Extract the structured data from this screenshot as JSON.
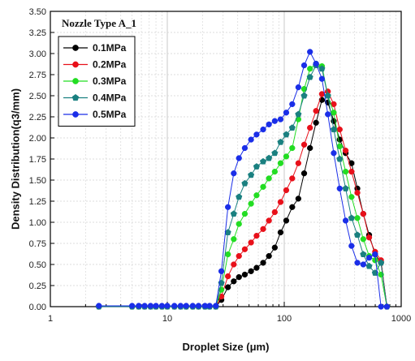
{
  "chart_data": {
    "type": "line",
    "title": "Nozzle Type A_1",
    "xlabel": "Droplet Size (μm)",
    "ylabel": "Density Distribution(q3/mm)",
    "xscale": "log",
    "xlim": [
      1,
      1000
    ],
    "ylim": [
      0,
      3.5
    ],
    "x_ticks": [
      1,
      10,
      100,
      1000
    ],
    "x_tick_labels": [
      "1",
      "10",
      "100",
      "1000"
    ],
    "y_ticks": [
      0,
      0.25,
      0.5,
      0.75,
      1.0,
      1.25,
      1.5,
      1.75,
      2.0,
      2.25,
      2.5,
      2.75,
      3.0,
      3.25,
      3.5
    ],
    "y_tick_labels": [
      "0.00",
      "0.25",
      "0.50",
      "0.75",
      "1.00",
      "1.25",
      "1.50",
      "1.75",
      "2.00",
      "2.25",
      "2.50",
      "2.75",
      "3.00",
      "3.25",
      "3.50"
    ],
    "grid": true,
    "legend_position": "top-left",
    "x": [
      2.6,
      5.0,
      5.7,
      6.4,
      7.2,
      8.0,
      9.0,
      10.0,
      11.5,
      13.0,
      14.5,
      16.5,
      18.5,
      21.0,
      23.0,
      26.0,
      29.0,
      33.0,
      37.0,
      41.0,
      46.0,
      52.0,
      58.0,
      66.0,
      74.0,
      83.0,
      93.0,
      104.0,
      117.0,
      132.0,
      148.0,
      166.0,
      187.0,
      210.0,
      236.0,
      265.0,
      298.0,
      335.0,
      376.0,
      422.0,
      474.0,
      532.0,
      598.0,
      672.0,
      755.0
    ],
    "series": [
      {
        "name": "0.1MPa",
        "color": "#000000",
        "marker": "circle",
        "values": [
          0,
          0,
          0,
          0,
          0,
          0,
          0,
          0,
          0,
          0,
          0,
          0,
          0,
          0,
          0,
          0,
          0.08,
          0.23,
          0.3,
          0.35,
          0.38,
          0.42,
          0.46,
          0.52,
          0.6,
          0.7,
          0.88,
          1.02,
          1.18,
          1.28,
          1.58,
          1.88,
          2.18,
          2.45,
          2.42,
          2.2,
          1.98,
          1.82,
          1.7,
          1.4,
          1.1,
          0.85,
          0.62,
          0.52,
          0
        ]
      },
      {
        "name": "0.2MPa",
        "color": "#e8101a",
        "marker": "circle",
        "values": [
          0,
          0,
          0,
          0,
          0,
          0,
          0,
          0,
          0,
          0,
          0,
          0,
          0,
          0,
          0,
          0,
          0.12,
          0.36,
          0.5,
          0.6,
          0.68,
          0.76,
          0.84,
          0.92,
          1.02,
          1.12,
          1.24,
          1.38,
          1.52,
          1.7,
          1.92,
          2.12,
          2.32,
          2.52,
          2.55,
          2.4,
          2.1,
          1.85,
          1.6,
          1.35,
          1.1,
          0.82,
          0.65,
          0.55,
          0
        ]
      },
      {
        "name": "0.3MPa",
        "color": "#22dd22",
        "marker": "circle",
        "values": [
          0,
          0,
          0,
          0,
          0,
          0,
          0,
          0,
          0,
          0,
          0,
          0,
          0,
          0,
          0,
          0,
          0.2,
          0.62,
          0.8,
          0.98,
          1.1,
          1.22,
          1.32,
          1.42,
          1.52,
          1.6,
          1.7,
          1.78,
          1.88,
          2.22,
          2.58,
          2.82,
          2.88,
          2.85,
          2.5,
          2.3,
          1.9,
          1.6,
          1.3,
          1.05,
          0.8,
          0.6,
          0.55,
          0.38,
          0
        ]
      },
      {
        "name": "0.4MPa",
        "color": "#1a8080",
        "marker": "pentagon",
        "values": [
          0,
          0,
          0,
          0,
          0,
          0,
          0,
          0,
          0,
          0,
          0,
          0,
          0,
          0,
          0,
          0,
          0.28,
          0.88,
          1.1,
          1.3,
          1.46,
          1.56,
          1.66,
          1.72,
          1.76,
          1.82,
          1.95,
          2.04,
          2.12,
          2.28,
          2.5,
          2.72,
          2.86,
          2.82,
          2.5,
          2.1,
          1.75,
          1.4,
          1.05,
          0.85,
          0.62,
          0.48,
          0.4,
          0.52,
          0
        ]
      },
      {
        "name": "0.5MPa",
        "color": "#1a2ee8",
        "marker": "circle",
        "values": [
          0.01,
          0.01,
          0.01,
          0.01,
          0.01,
          0.01,
          0.01,
          0.01,
          0.01,
          0.01,
          0.01,
          0.01,
          0.01,
          0.01,
          0.01,
          0.01,
          0.42,
          1.18,
          1.58,
          1.76,
          1.88,
          1.98,
          2.04,
          2.1,
          2.16,
          2.2,
          2.22,
          2.3,
          2.4,
          2.6,
          2.86,
          3.02,
          2.88,
          2.7,
          2.28,
          1.82,
          1.4,
          1.02,
          0.72,
          0.52,
          0.5,
          0.58,
          0.62,
          0,
          0
        ]
      }
    ]
  }
}
